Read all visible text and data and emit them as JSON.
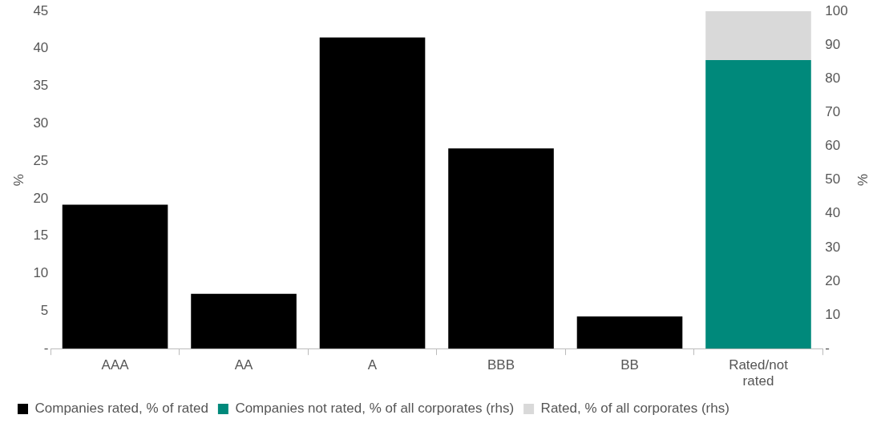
{
  "chart_data": {
    "type": "bar",
    "categories": [
      "AAA",
      "AA",
      "A",
      "BBB",
      "BB",
      "Rated/not rated"
    ],
    "series": [
      {
        "name": "Companies rated, % of rated",
        "color": "#000000",
        "values": [
          19.2,
          7.3,
          41.5,
          26.7,
          4.3,
          null
        ]
      },
      {
        "name": "Companies not rated, % of all corporates (rhs)",
        "color": "#00897b",
        "axis": "y2",
        "values": [
          null,
          null,
          null,
          null,
          null,
          85.5
        ]
      },
      {
        "name": "Rated, % of all corporates (rhs)",
        "color": "#d9d9d9",
        "axis": "y2",
        "values": [
          null,
          null,
          null,
          null,
          null,
          14.5
        ]
      }
    ],
    "stacked": true,
    "ylabel": "%",
    "y2label": "%",
    "ylim": [
      0,
      45
    ],
    "yticks": [
      {
        "value": 0,
        "label": "-"
      },
      5,
      10,
      15,
      20,
      25,
      30,
      35,
      40,
      45
    ],
    "y2lim": [
      0,
      100
    ],
    "y2ticks": [
      {
        "value": 0,
        "label": "-"
      },
      10,
      20,
      30,
      40,
      50,
      60,
      70,
      80,
      90,
      100
    ],
    "grid": false,
    "legend": "bottom"
  }
}
